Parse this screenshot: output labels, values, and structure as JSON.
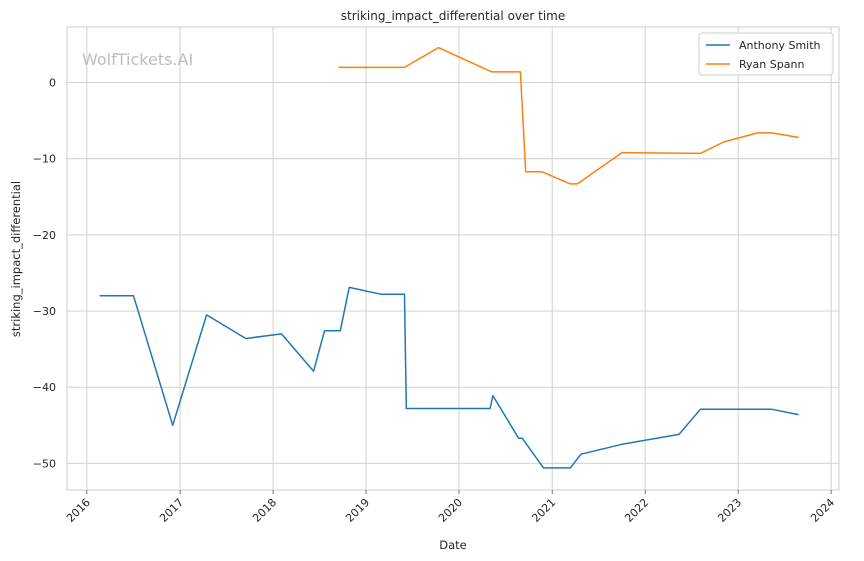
{
  "chart_data": {
    "type": "line",
    "title": "striking_impact_differential over time",
    "xlabel": "Date",
    "ylabel": "striking_impact_differential",
    "watermark": "WolfTickets.AI",
    "x_ticks": [
      "2016",
      "2017",
      "2018",
      "2019",
      "2020",
      "2021",
      "2022",
      "2023",
      "2024"
    ],
    "y_ticks": [
      0,
      -10,
      -20,
      -30,
      -40,
      -50
    ],
    "xlim": [
      "2015-10-15",
      "2024-02-01"
    ],
    "ylim": [
      -53.5,
      7.3
    ],
    "grid": true,
    "legend_position": "top-right",
    "series": [
      {
        "name": "Anthony Smith",
        "color": "#1f77b4",
        "points": [
          [
            "2016-02-20",
            -28.0
          ],
          [
            "2016-07-02",
            -28.0
          ],
          [
            "2016-12-03",
            -45.0
          ],
          [
            "2017-04-15",
            -30.5
          ],
          [
            "2017-09-16",
            -33.6
          ],
          [
            "2018-02-03",
            -33.0
          ],
          [
            "2018-06-09",
            -37.9
          ],
          [
            "2018-07-22",
            -32.6
          ],
          [
            "2018-09-22",
            -32.6
          ],
          [
            "2018-10-27",
            -26.9
          ],
          [
            "2019-03-02",
            -27.8
          ],
          [
            "2019-06-01",
            -27.8
          ],
          [
            "2019-06-08",
            -42.8
          ],
          [
            "2020-05-02",
            -42.8
          ],
          [
            "2020-05-13",
            -41.1
          ],
          [
            "2020-08-22",
            -46.7
          ],
          [
            "2020-09-05",
            -46.7
          ],
          [
            "2020-11-28",
            -50.6
          ],
          [
            "2021-03-13",
            -50.6
          ],
          [
            "2021-04-24",
            -48.8
          ],
          [
            "2021-10-02",
            -47.5
          ],
          [
            "2022-05-14",
            -46.2
          ],
          [
            "2022-08-06",
            -42.9
          ],
          [
            "2023-01-14",
            -42.9
          ],
          [
            "2023-05-13",
            -42.9
          ],
          [
            "2023-08-26",
            -43.6
          ]
        ]
      },
      {
        "name": "Ryan Spann",
        "color": "#ff7f0e",
        "points": [
          [
            "2018-09-15",
            2.0
          ],
          [
            "2019-06-01",
            2.0
          ],
          [
            "2019-10-12",
            4.6
          ],
          [
            "2020-05-09",
            1.4
          ],
          [
            "2020-08-29",
            1.4
          ],
          [
            "2020-09-19",
            -11.7
          ],
          [
            "2020-11-21",
            -11.7
          ],
          [
            "2021-03-13",
            -13.3
          ],
          [
            "2021-04-10",
            -13.3
          ],
          [
            "2021-10-02",
            -9.2
          ],
          [
            "2022-08-06",
            -9.3
          ],
          [
            "2022-11-05",
            -7.8
          ],
          [
            "2023-03-18",
            -6.6
          ],
          [
            "2023-05-13",
            -6.6
          ],
          [
            "2023-08-26",
            -7.2
          ]
        ]
      }
    ]
  }
}
